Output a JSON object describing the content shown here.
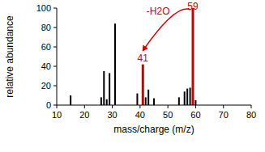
{
  "chart_data": {
    "type": "bar",
    "x_label": "mass/charge (m/z)",
    "y_label": "relative abundance",
    "x": [
      15,
      26,
      27,
      28,
      29,
      31,
      39,
      41,
      42,
      43,
      45,
      54,
      56,
      57,
      58,
      59,
      60
    ],
    "values": [
      10,
      8,
      35,
      6,
      33,
      84,
      12,
      42,
      8,
      16,
      7,
      8,
      14,
      17,
      18,
      100,
      5
    ],
    "colors": [
      "#000000",
      "#000000",
      "#000000",
      "#000000",
      "#000000",
      "#000000",
      "#000000",
      "#cc0000",
      "#000000",
      "#000000",
      "#000000",
      "#000000",
      "#000000",
      "#000000",
      "#000000",
      "#cc0000",
      "#000000"
    ],
    "xlim": [
      10,
      80
    ],
    "xticks": [
      10,
      20,
      30,
      40,
      50,
      60,
      70,
      80
    ],
    "ylim": [
      0,
      100
    ],
    "yticks": [
      0,
      20,
      40,
      60,
      80,
      100
    ],
    "grid": false,
    "annotations": [
      {
        "text": "-H2O",
        "x_from": 59,
        "x_to": 41
      },
      {
        "text": "41",
        "x": 41
      },
      {
        "text": "59",
        "x": 59
      }
    ]
  }
}
